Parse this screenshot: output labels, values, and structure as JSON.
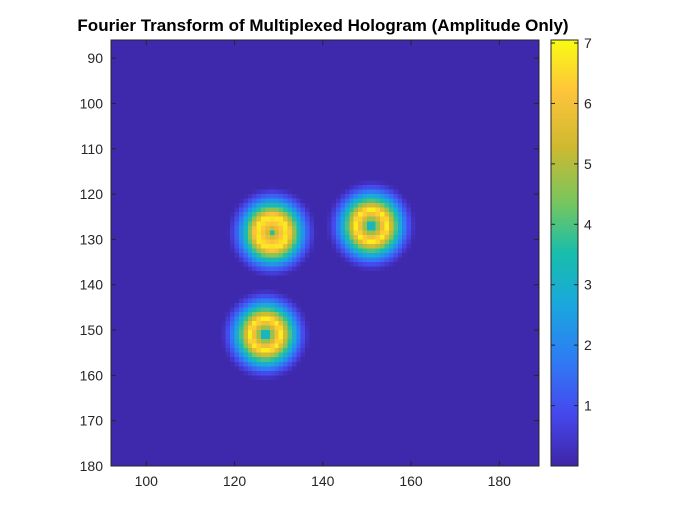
{
  "chart_data": {
    "type": "heatmap",
    "title": "Fourier Transform of Multiplexed Hologram (Amplitude Only)",
    "xlabel": "",
    "ylabel": "",
    "xlim": [
      92,
      189
    ],
    "ylim": [
      86,
      180
    ],
    "y_reversed": true,
    "x_ticks": [
      100,
      120,
      140,
      160,
      180
    ],
    "x_tick_labels": [
      "100",
      "120",
      "140",
      "160",
      "180"
    ],
    "y_ticks": [
      90,
      100,
      110,
      120,
      130,
      140,
      150,
      160,
      170,
      180
    ],
    "y_tick_labels": [
      "90",
      "100",
      "110",
      "120",
      "130",
      "140",
      "150",
      "160",
      "170",
      "180"
    ],
    "colormap": "parula",
    "clim": [
      0,
      7.05
    ],
    "background_value": 0.05,
    "colorbar": {
      "ticks": [
        1,
        2,
        3,
        4,
        5,
        6,
        7
      ],
      "tick_labels": [
        "1",
        "2",
        "3",
        "4",
        "5",
        "6",
        "7"
      ],
      "location": "right"
    },
    "peaks": [
      {
        "x": 128.5,
        "y": 128.5,
        "center_value": 3.6,
        "ring_value": 6.9,
        "ring_radius": 3.5,
        "outer_radius": 10.5
      },
      {
        "x": 151,
        "y": 127,
        "center_value": 0.3,
        "ring_value": 6.9,
        "ring_radius": 3.5,
        "outer_radius": 10.5
      },
      {
        "x": 127,
        "y": 151,
        "center_value": 0.2,
        "ring_value": 6.9,
        "ring_radius": 3.5,
        "outer_radius": 10.5
      }
    ],
    "grid": false
  }
}
